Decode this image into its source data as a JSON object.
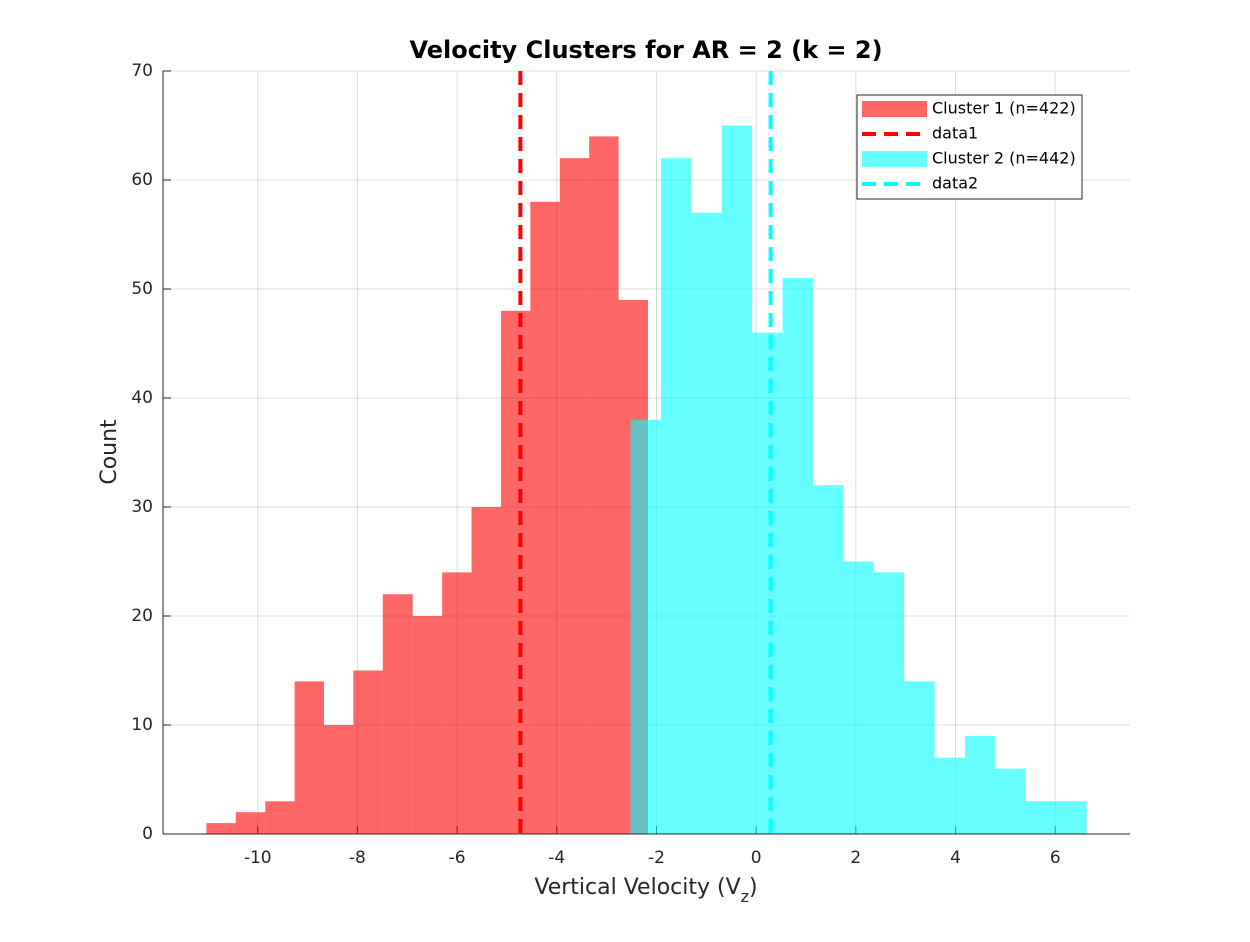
{
  "chart_data": {
    "type": "histogram",
    "title": "Velocity Clusters for AR = 2 (k = 2)",
    "xlabel": [
      "Vertical Velocity (V",
      "z",
      ")"
    ],
    "ylabel": "Count",
    "xlim": [
      -11.9,
      7.5
    ],
    "ylim": [
      0,
      70
    ],
    "xticks": [
      -10,
      -8,
      -6,
      -4,
      -2,
      0,
      2,
      4,
      6
    ],
    "yticks": [
      0,
      10,
      20,
      30,
      40,
      50,
      60,
      70
    ],
    "grid": true,
    "alpha": 0.6,
    "legend": "northeast",
    "series": [
      {
        "name": "Cluster 1 (n=422)",
        "type": "histogram",
        "color": "#ff0000",
        "bins": [
          -11.03,
          -10.44,
          -9.85,
          -9.26,
          -8.67,
          -8.08,
          -7.49,
          -6.89,
          -6.3,
          -5.71,
          -5.12,
          -4.53,
          -3.94,
          -3.35,
          -2.76,
          -2.17
        ],
        "values": [
          1,
          2,
          3,
          14,
          10,
          15,
          22,
          20,
          24,
          30,
          48,
          58,
          62,
          64,
          49
        ]
      },
      {
        "name": "data1",
        "type": "vline",
        "color": "#ff0000",
        "x": -4.73
      },
      {
        "name": "Cluster 2 (n=442)",
        "type": "histogram",
        "color": "#00ffff",
        "bins": [
          -2.52,
          -1.91,
          -1.3,
          -0.69,
          -0.08,
          0.53,
          1.14,
          1.75,
          2.36,
          2.97,
          3.58,
          4.19,
          4.8,
          5.41,
          6.02,
          6.63
        ],
        "values": [
          38,
          62,
          57,
          65,
          46,
          51,
          32,
          25,
          24,
          14,
          7,
          9,
          6,
          3,
          3
        ]
      },
      {
        "name": "data2",
        "type": "vline",
        "color": "#00ffff",
        "x": 0.29
      }
    ]
  }
}
